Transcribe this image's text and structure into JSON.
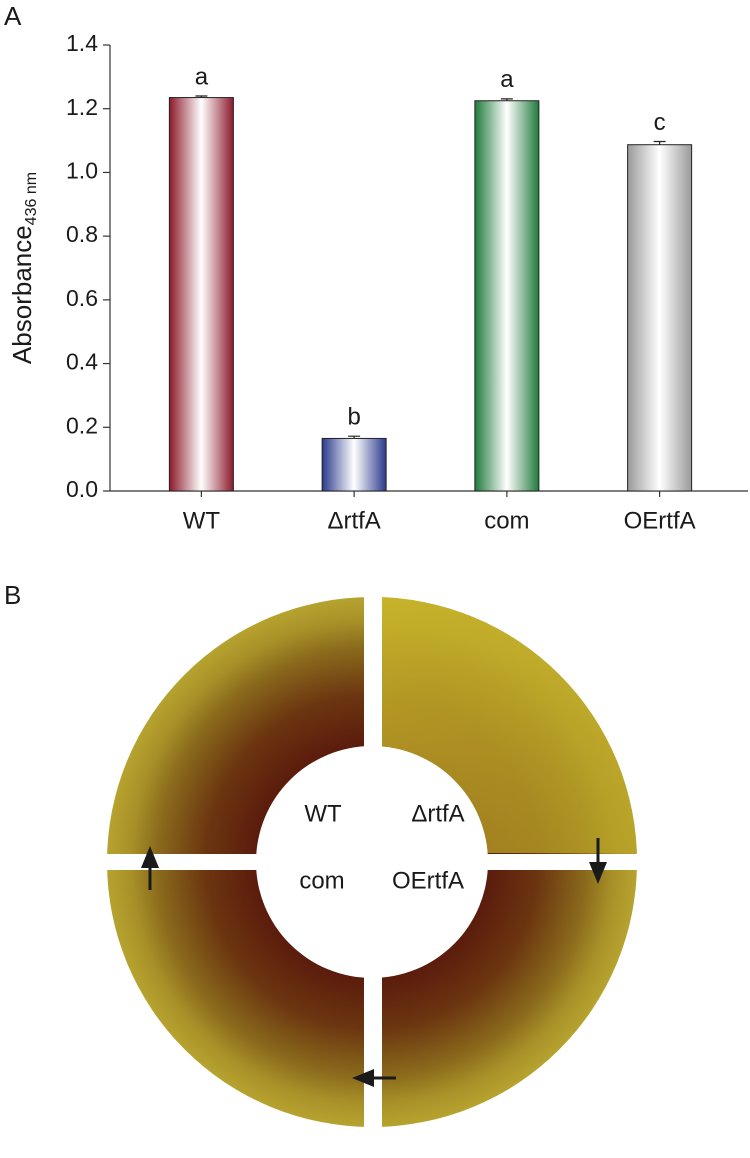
{
  "chart_data": {
    "type": "bar",
    "y_label": "Absorbance",
    "y_label_subscript": "436 nm",
    "categories": [
      "WT",
      "ΔrtfA",
      "com",
      "OErtfA"
    ],
    "values": [
      1.235,
      0.165,
      1.225,
      1.087
    ],
    "errors": [
      0.005,
      0.007,
      0.006,
      0.01
    ],
    "annotations": [
      "a",
      "b",
      "a",
      "c"
    ],
    "colors": [
      "#8c1a2b",
      "#2b3a8c",
      "#1f7a3c",
      "#9a9a9a"
    ],
    "ylim": [
      0,
      1.4
    ],
    "yticks": [
      {
        "value": 0,
        "label": "0.0"
      },
      0.2,
      0.4,
      0.6,
      0.8,
      {
        "value": 1,
        "label": "1.0"
      },
      1.2,
      1.4
    ]
  },
  "panel_a_label": "A",
  "panel_b": {
    "label": "B",
    "quadrants": [
      "WT",
      "ΔrtfA",
      "com",
      "OErtfA"
    ]
  }
}
